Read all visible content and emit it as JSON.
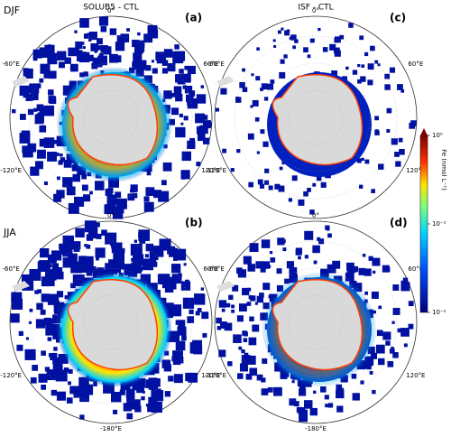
{
  "column_titles": [
    "SOLUB5 - CTL",
    "ISF - CTL"
  ],
  "row_labels": [
    "DJF",
    "JJA"
  ],
  "panels": [
    {
      "label": "(a)"
    },
    {
      "label": "(c)"
    },
    {
      "label": "(b)"
    },
    {
      "label": "(d)"
    }
  ],
  "longitude_labels": [
    "0°",
    "60°E",
    "120°E",
    "-180°E",
    "-120°E",
    "-60°E"
  ],
  "colorbar": {
    "label": "Fe (nmol L⁻¹)",
    "log": true,
    "lim": [
      0.01,
      1
    ],
    "ticks": [
      {
        "value": 0.01,
        "label": "10⁻²"
      },
      {
        "value": 0.1,
        "label": "10⁻¹"
      },
      {
        "value": 1,
        "label": "10⁰"
      }
    ]
  }
}
